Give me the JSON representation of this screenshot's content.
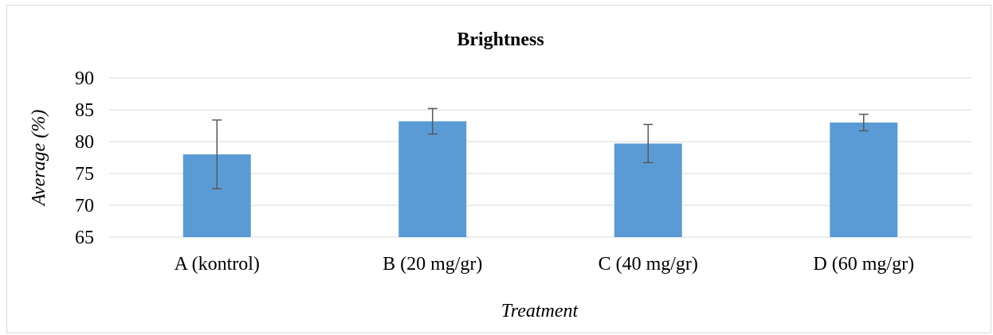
{
  "chart_data": {
    "type": "bar",
    "title": "Brightness",
    "xlabel": "Treatment",
    "ylabel": "Average (%)",
    "categories": [
      "A (kontrol)",
      "B (20 mg/gr)",
      "C (40 mg/gr)",
      "D (60 mg/gr)"
    ],
    "values": [
      78.0,
      83.2,
      79.7,
      83.0
    ],
    "error": [
      5.4,
      2.0,
      3.0,
      1.3
    ],
    "ylim": [
      65,
      90
    ],
    "yticks": [
      65,
      70,
      75,
      80,
      85,
      90
    ],
    "grid": true,
    "legend": "none",
    "bar_color": "#5b9bd5",
    "error_bar_color": "#595959",
    "grid_color": "#d9d9d9"
  }
}
